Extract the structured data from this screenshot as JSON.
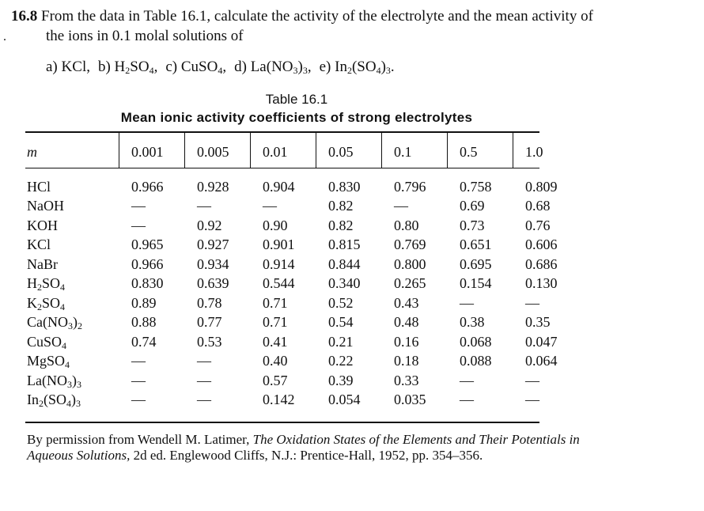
{
  "problem": {
    "number": "16.8",
    "text_line1": "From the data in Table 16.1, calculate the activity of the electrolyte and the mean activity of",
    "text_line2": "the ions in 0.1 molal solutions of",
    "items": [
      {
        "label": "a)",
        "formula": "KCl,"
      },
      {
        "label": "b)",
        "formula": "H2SO4,"
      },
      {
        "label": "c)",
        "formula": "CuSO4,"
      },
      {
        "label": "d)",
        "formula": "La(NO3)3,"
      },
      {
        "label": "e)",
        "formula": "In2(SO4)3."
      }
    ]
  },
  "table": {
    "caption": "Table 16.1",
    "title": "Mean ionic activity coefficients of strong electrolytes",
    "row_header": "m",
    "columns": [
      "0.001",
      "0.005",
      "0.01",
      "0.05",
      "0.1",
      "0.5",
      "1.0"
    ],
    "rows": [
      {
        "name": "HCl",
        "values": [
          "0.966",
          "0.928",
          "0.904",
          "0.830",
          "0.796",
          "0.758",
          "0.809"
        ]
      },
      {
        "name": "NaOH",
        "values": [
          "—",
          "—",
          "—",
          "0.82",
          "—",
          "0.69",
          "0.68"
        ]
      },
      {
        "name": "KOH",
        "values": [
          "—",
          "0.92",
          "0.90",
          "0.82",
          "0.80",
          "0.73",
          "0.76"
        ]
      },
      {
        "name": "KCl",
        "values": [
          "0.965",
          "0.927",
          "0.901",
          "0.815",
          "0.769",
          "0.651",
          "0.606"
        ]
      },
      {
        "name": "NaBr",
        "values": [
          "0.966",
          "0.934",
          "0.914",
          "0.844",
          "0.800",
          "0.695",
          "0.686"
        ]
      },
      {
        "name": "H2SO4",
        "values": [
          "0.830",
          "0.639",
          "0.544",
          "0.340",
          "0.265",
          "0.154",
          "0.130"
        ]
      },
      {
        "name": "K2SO4",
        "values": [
          "0.89",
          "0.78",
          "0.71",
          "0.52",
          "0.43",
          "—",
          "—"
        ]
      },
      {
        "name": "Ca(NO3)2",
        "values": [
          "0.88",
          "0.77",
          "0.71",
          "0.54",
          "0.48",
          "0.38",
          "0.35"
        ]
      },
      {
        "name": "CuSO4",
        "values": [
          "0.74",
          "0.53",
          "0.41",
          "0.21",
          "0.16",
          "0.068",
          "0.047"
        ]
      },
      {
        "name": "MgSO4",
        "values": [
          "—",
          "—",
          "0.40",
          "0.22",
          "0.18",
          "0.088",
          "0.064"
        ]
      },
      {
        "name": "La(NO3)3",
        "values": [
          "—",
          "—",
          "0.57",
          "0.39",
          "0.33",
          "—",
          "—"
        ]
      },
      {
        "name": "In2(SO4)3",
        "values": [
          "—",
          "—",
          "0.142",
          "0.054",
          "0.035",
          "—",
          "—"
        ]
      }
    ]
  },
  "credit": {
    "prefix": "By permission from Wendell M. Latimer, ",
    "book_title": "The Oxidation States of the Elements and Their Potentials in Aqueous Solutions,",
    "suffix": " 2d ed. Englewood Cliffs, N.J.: Prentice-Hall, 1952, pp. 354–356."
  }
}
